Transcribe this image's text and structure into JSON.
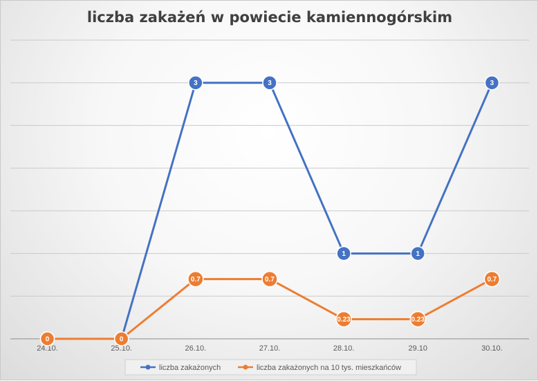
{
  "chart_data": {
    "type": "line",
    "title": "liczba zakażeń w powiecie kamiennogórskim",
    "categories": [
      "24.10.",
      "25.10.",
      "26.10.",
      "27.10.",
      "28.10.",
      "29.10",
      "30.10."
    ],
    "ylim": [
      0,
      3
    ],
    "grid": true,
    "legend_position": "bottom",
    "series": [
      {
        "name": "liczba zakażonych",
        "values": [
          0,
          0,
          3,
          3,
          1,
          1,
          3
        ],
        "labels": [
          "0",
          "0",
          "3",
          "3",
          "1",
          "1",
          "3"
        ],
        "color": "#4472c4"
      },
      {
        "name": "liczba zakażonych na 10 tys. mieszkańców",
        "values": [
          0,
          0,
          0.7,
          0.7,
          0.23,
          0.23,
          0.7
        ],
        "labels": [
          "0",
          "0",
          "0.7",
          "0.7",
          "0.23",
          "0.23",
          "0.7"
        ],
        "color": "#ed7d31"
      }
    ]
  }
}
